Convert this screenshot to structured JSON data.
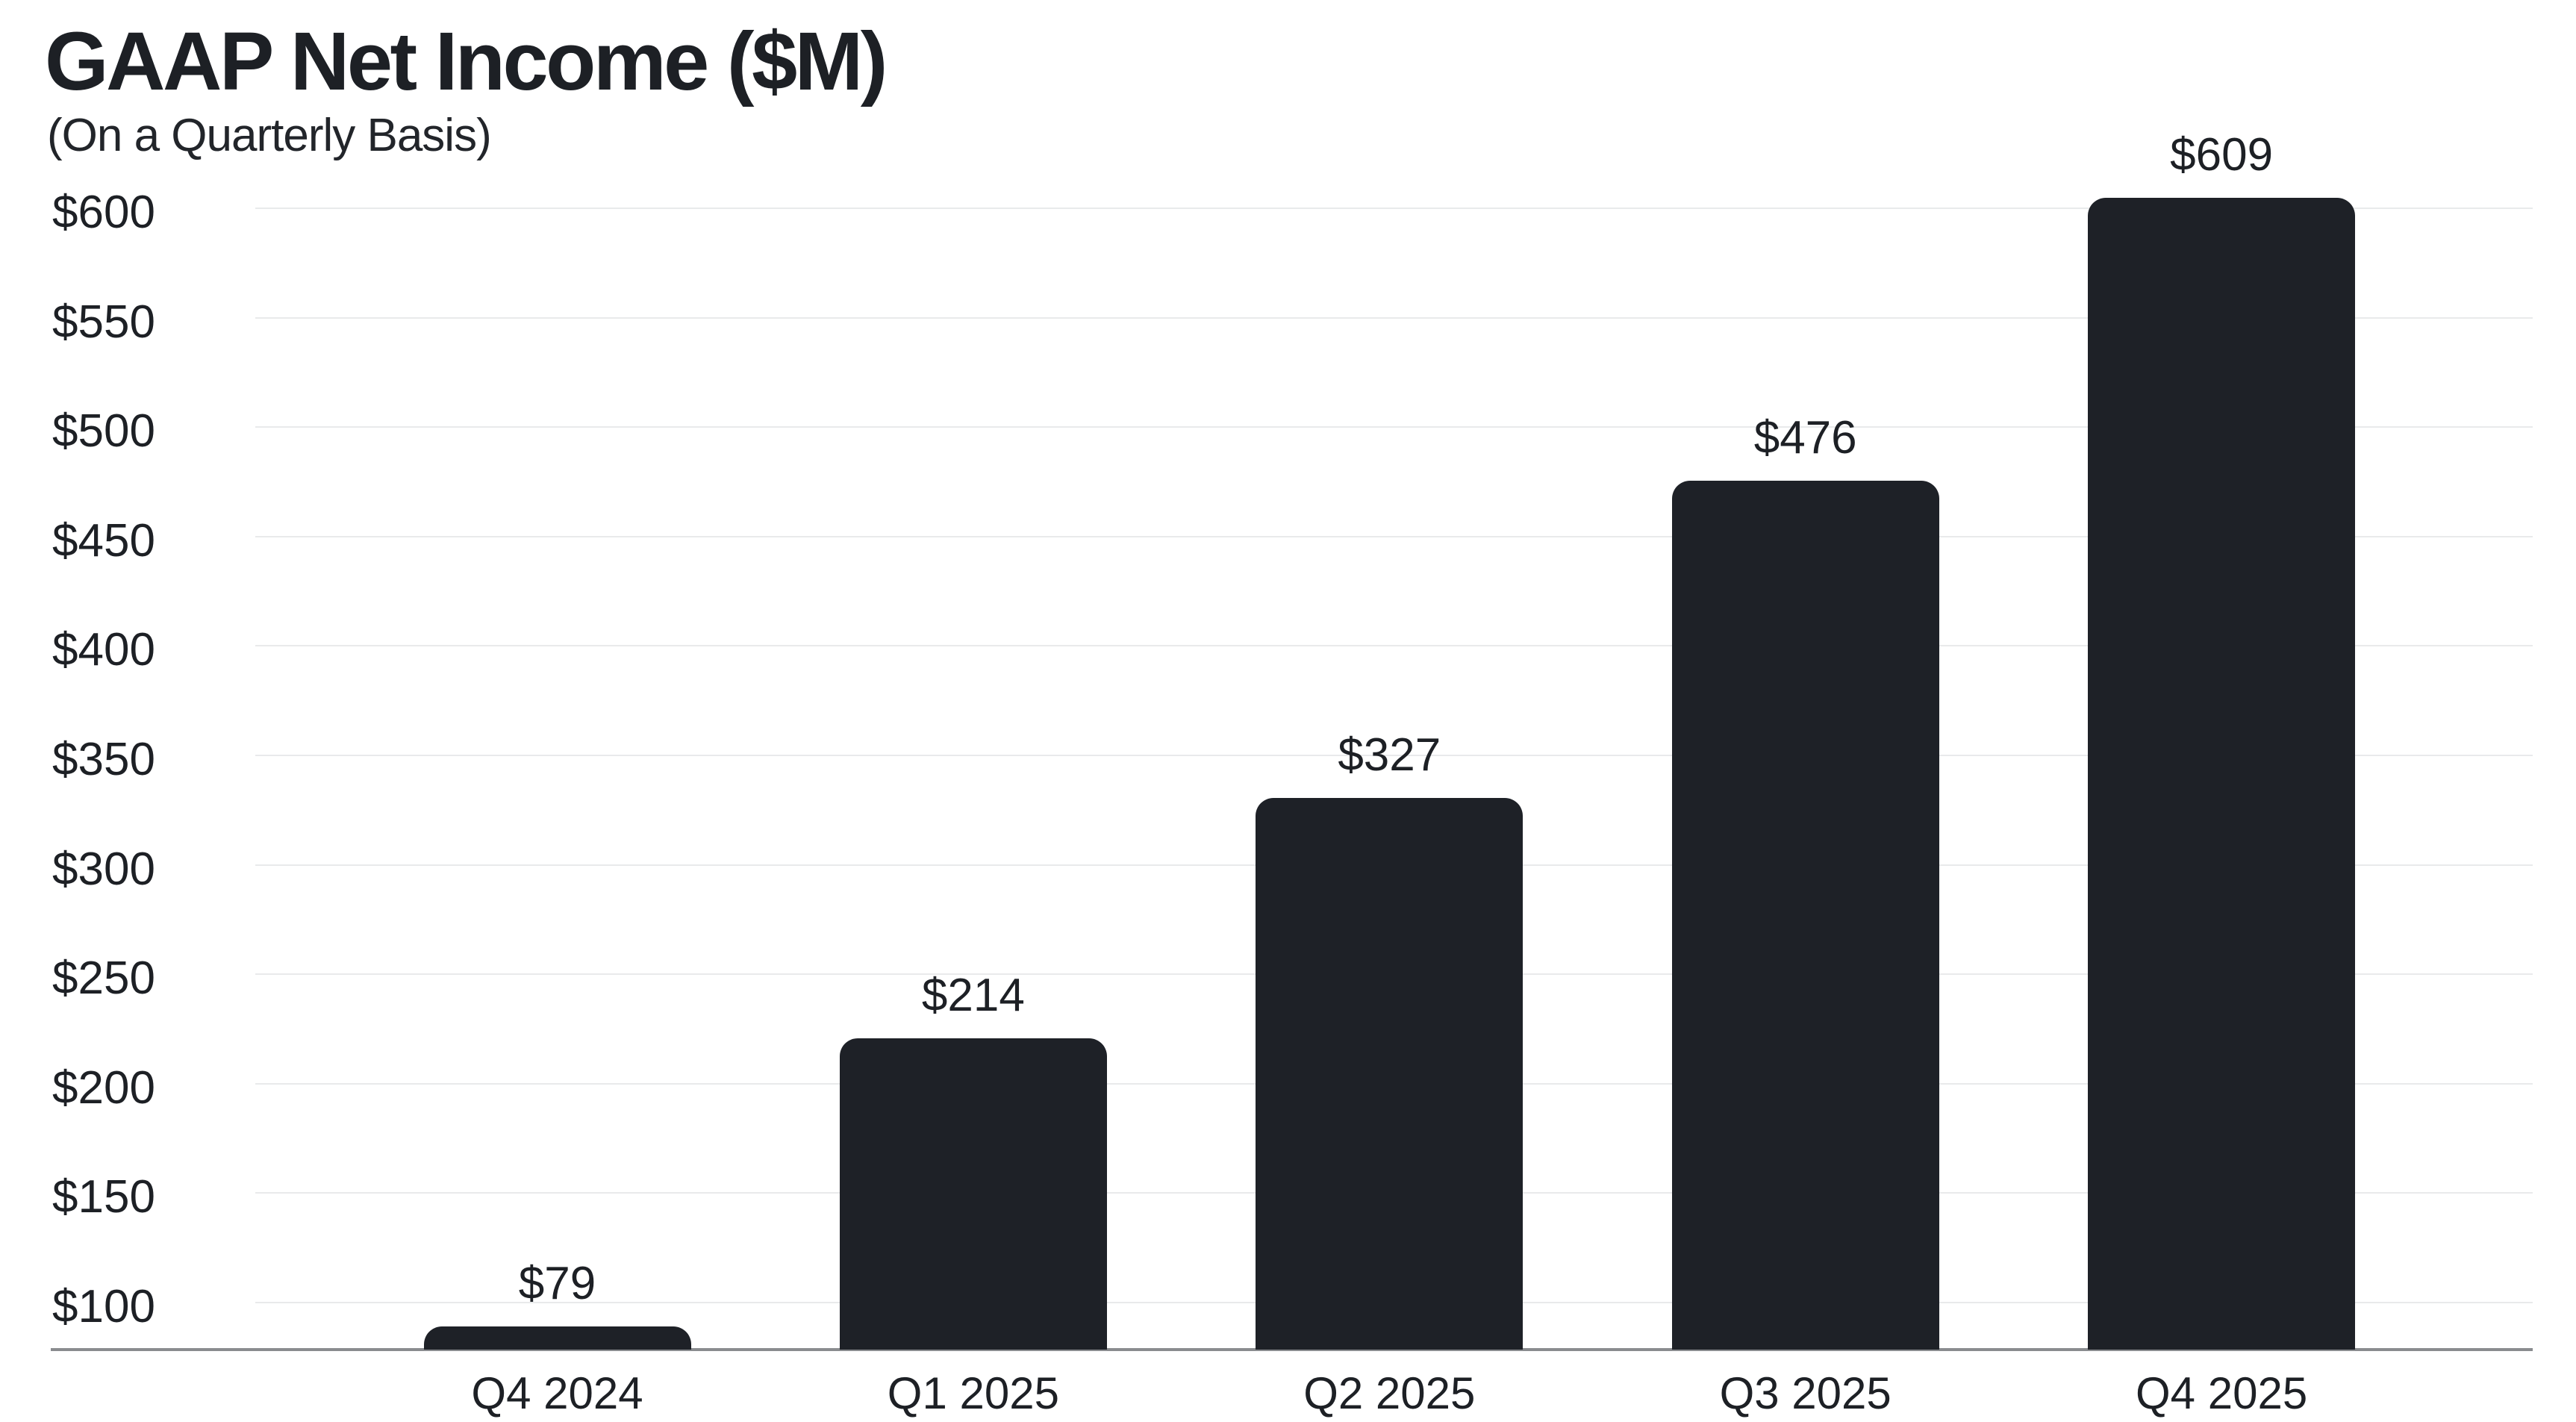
{
  "title": "GAAP Net Income ($M)",
  "subtitle": "(On a Quarterly Basis)",
  "chart_data": {
    "type": "bar",
    "title": "GAAP Net Income ($M)",
    "subtitle": "(On a Quarterly Basis)",
    "categories": [
      "Q4 2024",
      "Q1 2025",
      "Q2 2025",
      "Q3 2025",
      "Q4 2025"
    ],
    "values": [
      79,
      214,
      327,
      476,
      609
    ],
    "value_labels": [
      "$79",
      "$214",
      "$327",
      "$476",
      "$609"
    ],
    "xlabel": "",
    "ylabel": "",
    "y_ticks": [
      "$100",
      "$150",
      "$200",
      "$250",
      "$300",
      "$350",
      "$400",
      "$450",
      "$500",
      "$550",
      "$600"
    ],
    "y_tick_values": [
      100,
      150,
      200,
      250,
      300,
      350,
      400,
      450,
      500,
      550,
      600
    ],
    "ylim": [
      75,
      620
    ],
    "grid": "horizontal-only",
    "legend": "none",
    "colors": {
      "bar": "#1e2127",
      "text": "#1d2025",
      "gridline": "#e9eaeb",
      "axis_line": "#8a8c8f",
      "background": "#ffffff"
    }
  }
}
